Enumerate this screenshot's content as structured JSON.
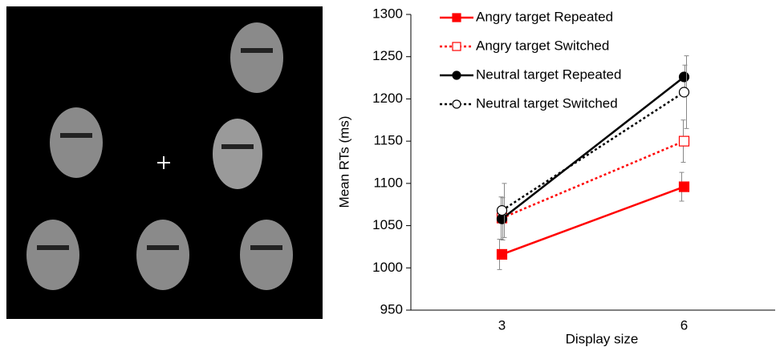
{
  "chart_data": {
    "type": "line",
    "categories": [
      "3",
      "6"
    ],
    "xlabel": "Display size",
    "ylabel": "Mean RTs (ms)",
    "ylim": [
      950,
      1300
    ],
    "yticks": [
      950,
      1000,
      1050,
      1100,
      1150,
      1200,
      1250,
      1300
    ],
    "legend": "upper left",
    "series": [
      {
        "name": "Angry target Repeated",
        "color": "#ff0000",
        "linestyle": "solid",
        "marker": "square",
        "filled": true,
        "values": [
          1016,
          1096
        ],
        "errors": [
          18,
          17
        ]
      },
      {
        "name": "Angry target Switched",
        "color": "#ff0000",
        "linestyle": "dotted",
        "marker": "square",
        "filled": false,
        "values": [
          1059,
          1150
        ],
        "errors": [
          25,
          25
        ]
      },
      {
        "name": "Neutral target Repeated",
        "color": "#000000",
        "linestyle": "solid",
        "marker": "circle",
        "filled": true,
        "values": [
          1058,
          1226
        ],
        "errors": [
          25,
          14
        ]
      },
      {
        "name": "Neutral target Switched",
        "color": "#000000",
        "linestyle": "dotted",
        "marker": "circle",
        "filled": false,
        "values": [
          1068,
          1208
        ],
        "errors": [
          32,
          43
        ]
      }
    ]
  }
}
